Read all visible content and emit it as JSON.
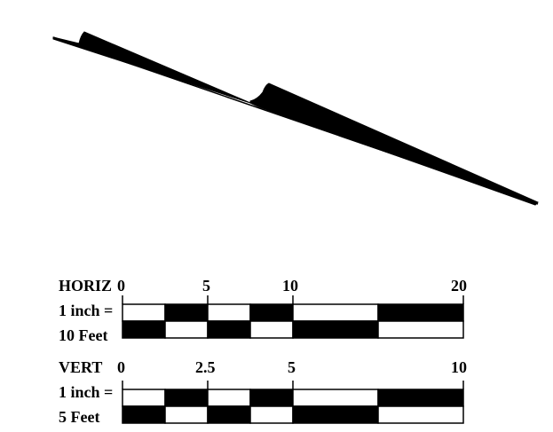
{
  "colors": {
    "ink": "#000000",
    "paper": "#ffffff"
  },
  "horizontal_scale": {
    "name": "HORIZ",
    "ratio": "1 inch =",
    "units": "10 Feet",
    "ticks": [
      "0",
      "5",
      "10",
      "20"
    ]
  },
  "vertical_scale": {
    "name": "VERT",
    "ratio": "1 inch =",
    "units": "5 Feet",
    "ticks": [
      "0",
      "2.5",
      "5",
      "10"
    ]
  }
}
